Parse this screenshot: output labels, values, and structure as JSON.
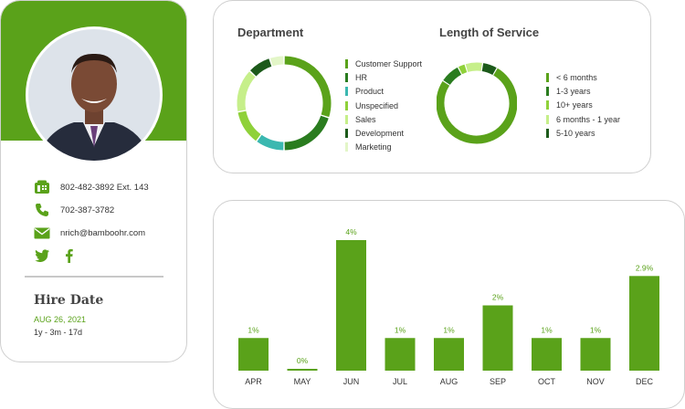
{
  "profile": {
    "phone_work": "802-482-3892 Ext. 143",
    "phone_mobile": "702-387-3782",
    "email": "nrich@bamboohr.com",
    "social": [
      "twitter-icon",
      "facebook-icon"
    ],
    "hire_title": "Hire Date",
    "hire_date": "AUG 26, 2021",
    "hire_length": "1y - 3m - 17d",
    "colors": {
      "brand_green": "#5aa21a"
    }
  },
  "department": {
    "title": "Department",
    "legend": [
      {
        "label": "Customer Support",
        "color": "#5aa21a"
      },
      {
        "label": "HR",
        "color": "#2a7c1f"
      },
      {
        "label": "Product",
        "color": "#3bb8b0"
      },
      {
        "label": "Unspecified",
        "color": "#8fd13a"
      },
      {
        "label": "Sales",
        "color": "#c6ef8a"
      },
      {
        "label": "Development",
        "color": "#1c5a1a"
      },
      {
        "label": "Marketing",
        "color": "#e3f6c8"
      }
    ]
  },
  "service": {
    "title": "Length of Service",
    "legend": [
      {
        "label": "< 6 months",
        "color": "#5aa21a"
      },
      {
        "label": "1-3 years",
        "color": "#2a7c1f"
      },
      {
        "label": "10+ years",
        "color": "#8fd13a"
      },
      {
        "label": "6 months - 1 year",
        "color": "#c6ef8a"
      },
      {
        "label": "5-10 years",
        "color": "#1c5a1a"
      }
    ]
  },
  "chart_data": [
    {
      "type": "pie",
      "title": "Department",
      "labels": [
        "Customer Support",
        "HR",
        "Product",
        "Unspecified",
        "Sales",
        "Development",
        "Marketing"
      ],
      "values": [
        30,
        20,
        10,
        12,
        15,
        8,
        5
      ]
    },
    {
      "type": "pie",
      "title": "Length of Service",
      "labels": [
        "< 6 months",
        "1-3 years",
        "10+ years",
        "6 months - 1 year",
        "5-10 years"
      ],
      "values": [
        76,
        8,
        3,
        7,
        6
      ]
    },
    {
      "type": "bar",
      "categories": [
        "APR",
        "MAY",
        "JUN",
        "JUL",
        "AUG",
        "SEP",
        "OCT",
        "NOV",
        "DEC"
      ],
      "values": [
        1,
        0,
        4,
        1,
        1,
        2,
        1,
        1,
        2.9
      ],
      "labels": [
        "1%",
        "0%",
        "4%",
        "1%",
        "1%",
        "2%",
        "1%",
        "1%",
        "2.9%"
      ],
      "ylim": [
        0,
        4
      ],
      "color": "#5aa21a"
    }
  ]
}
